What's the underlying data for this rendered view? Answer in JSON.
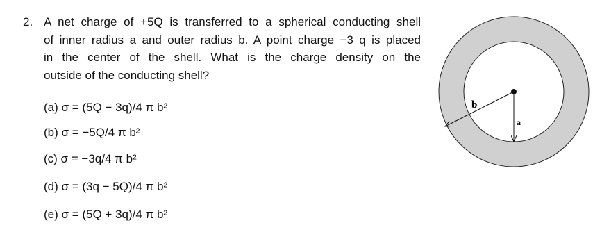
{
  "question": {
    "number": "2.",
    "lines": [
      "A net charge of +5Q is transferred to a spherical conducting shell",
      "of inner radius a and outer radius b. A point charge −3 q is placed",
      "in the center of the shell. What is the charge density on the",
      "outside of the conducting shell?"
    ],
    "options": [
      "(a) σ = (5Q − 3q)/4 π b²",
      "(b) σ = −5Q/4 π b²",
      "(c)  σ = −3q/4 π b²",
      "(d) σ = (3q − 5Q)/4 π b²",
      "(e) σ = (5Q + 3q)/4 π b²"
    ]
  },
  "diagram": {
    "outer_label": "b",
    "inner_label": "a"
  }
}
